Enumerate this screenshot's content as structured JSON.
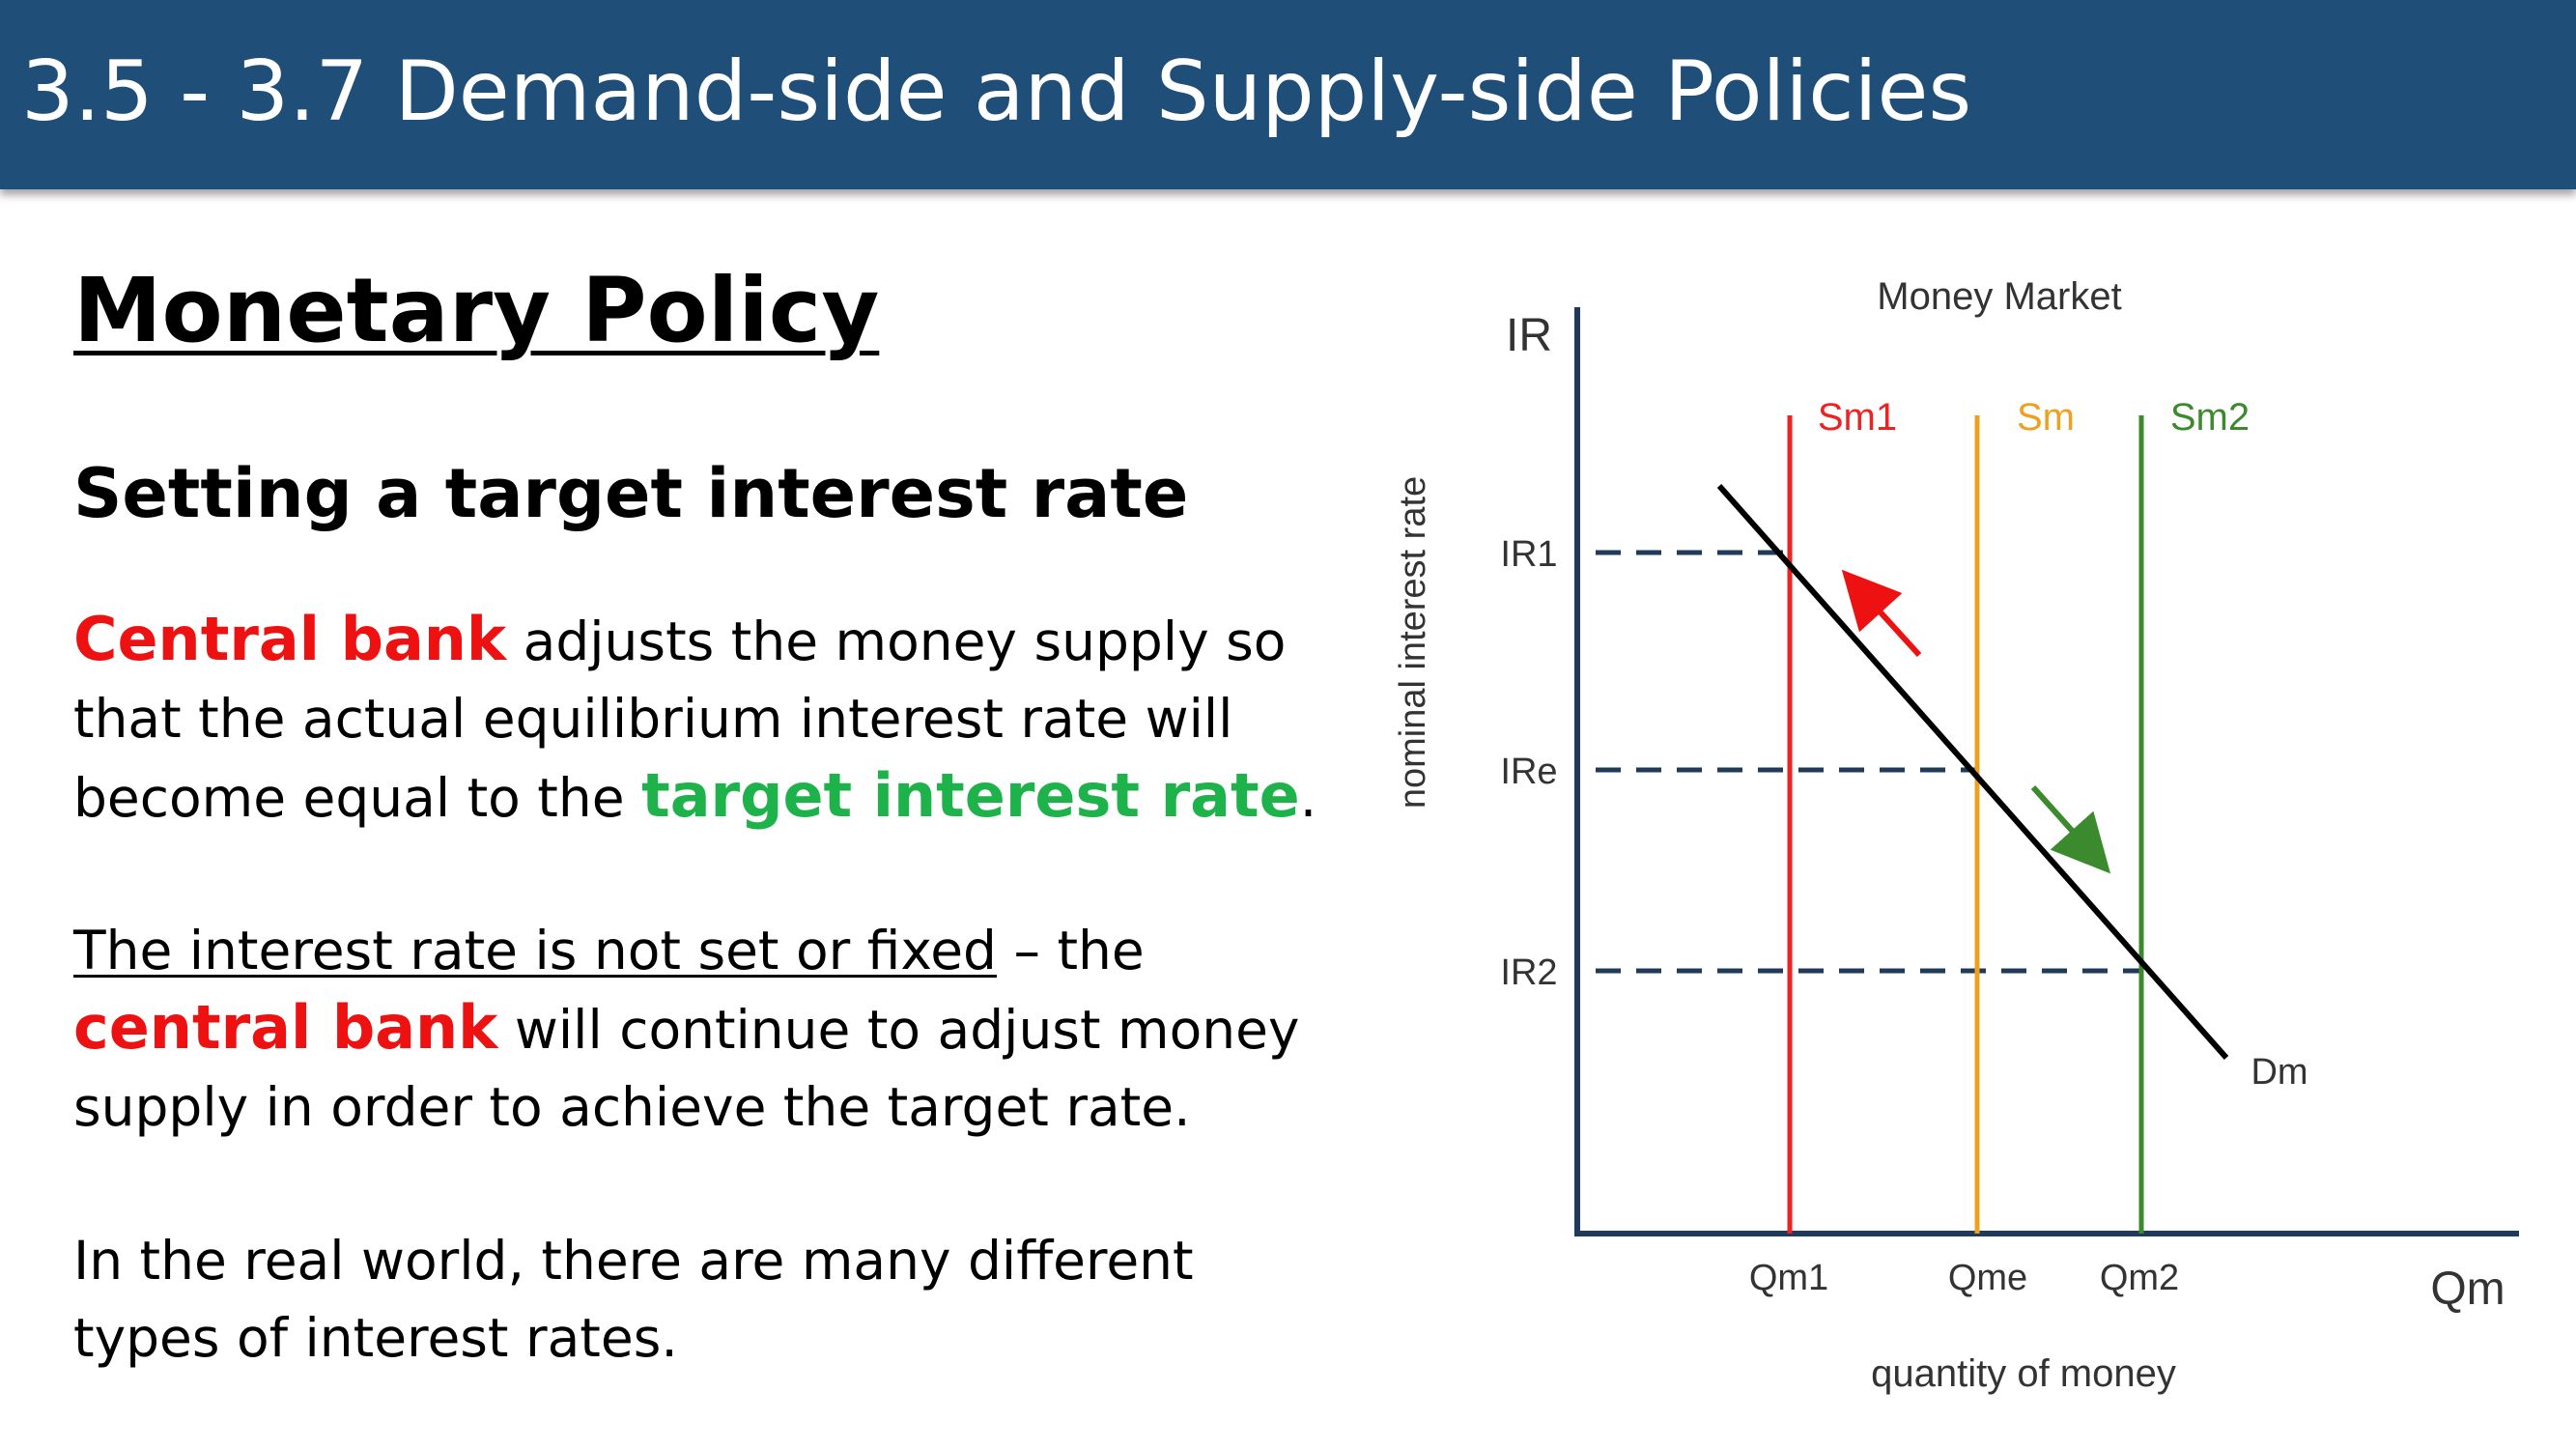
{
  "header": {
    "title": "3.5 - 3.7 Demand-side and Supply-side Policies"
  },
  "slide": {
    "heading": "Monetary Policy",
    "subheading": "Setting a target interest rate",
    "p1": {
      "t1": "Central bank",
      "t2": " adjusts the money supply so that the actual equilibrium interest rate will become equal to the ",
      "t3": "target interest rate",
      "t4": "."
    },
    "p2": {
      "t1": "The interest rate is not set or fixed",
      "t2": " – the ",
      "t3": "central bank",
      "t4": " will continue to adjust money supply in order to achieve the target rate."
    },
    "p3": "In the real world, there are many different types of interest rates."
  },
  "diagram": {
    "title": "Money Market",
    "y_axis_symbol": "IR",
    "x_axis_symbol": "Qm",
    "y_axis_label": "nominal interest rate",
    "x_axis_label": "quantity of money",
    "demand_label": "Dm",
    "supply_curves": [
      {
        "label": "Sm1",
        "qty_label": "Qm1",
        "rate_label": "IR1",
        "color": "#ee2222"
      },
      {
        "label": "Sm",
        "qty_label": "Qme",
        "rate_label": "IRe",
        "color": "#f0a020"
      },
      {
        "label": "Sm2",
        "qty_label": "Qm2",
        "rate_label": "IR2",
        "color": "#3c8a2e"
      }
    ],
    "colors": {
      "axis": "#1f3a5a",
      "dashed": "#1f3a5a",
      "demand": "#000000",
      "arrow_up": "#ee1111",
      "arrow_down": "#3c8a2e",
      "label": "#333333"
    }
  }
}
